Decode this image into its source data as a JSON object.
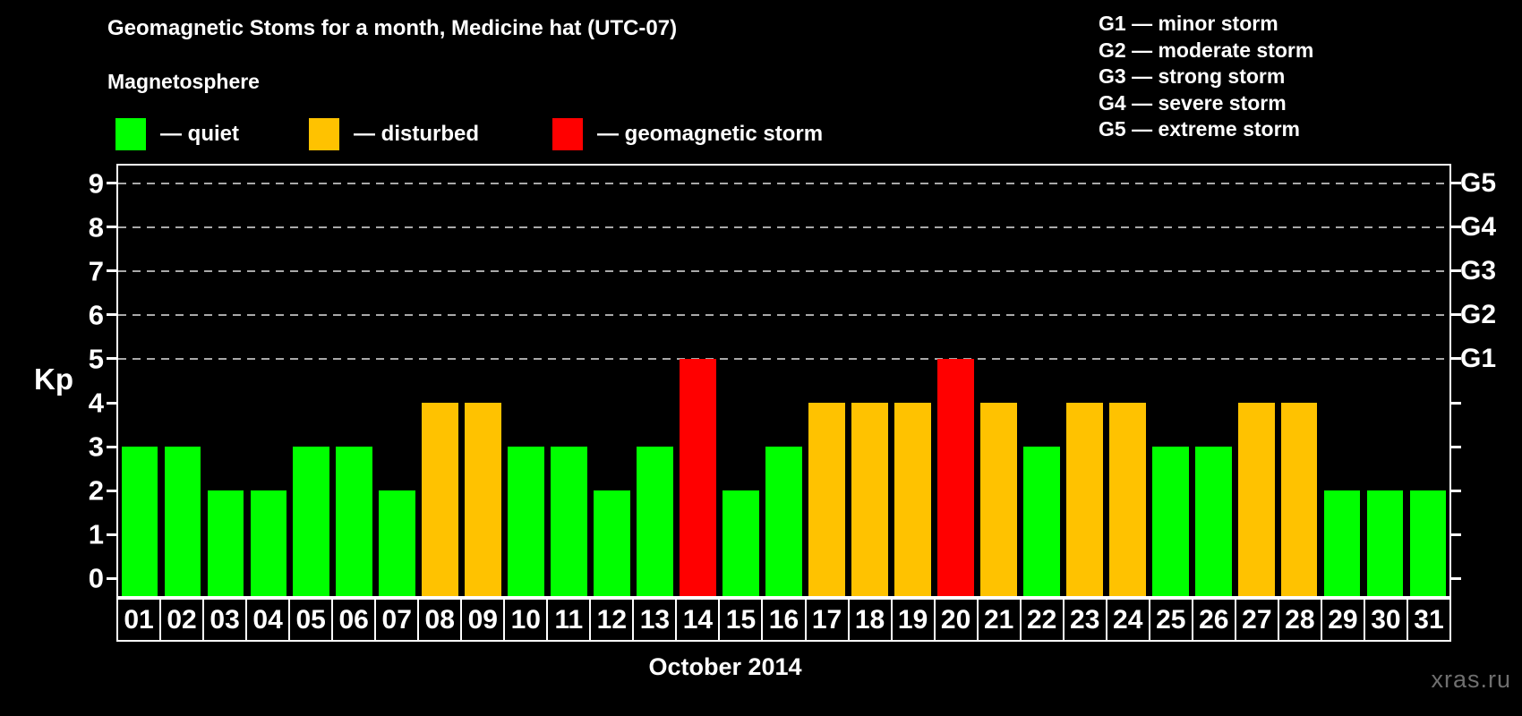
{
  "title": "Geomagnetic Stoms for a month, Medicine hat (UTC-07)",
  "subtitle": "Magnetosphere",
  "legend": {
    "items": [
      {
        "status": "quiet",
        "label": "— quiet",
        "color": "#00ff00",
        "x": 129
      },
      {
        "status": "disturbed",
        "label": "— disturbed",
        "color": "#ffc200",
        "x": 345
      },
      {
        "status": "storm",
        "label": "— geomagnetic storm",
        "color": "#ff0000",
        "x": 617
      }
    ]
  },
  "g_scale_legend": [
    "G1 — minor storm",
    "G2 — moderate storm",
    "G3 — strong storm",
    "G4 — severe storm",
    "G5 — extreme storm"
  ],
  "watermark": "xras.ru",
  "chart_data": {
    "type": "bar",
    "title": "Geomagnetic Stoms for a month, Medicine hat (UTC-07)",
    "xlabel": "October 2014",
    "ylabel": "Kp",
    "ylim": [
      -0.4,
      9.4
    ],
    "yticks": [
      0,
      1,
      2,
      3,
      4,
      5,
      6,
      7,
      8,
      9
    ],
    "gridlines_at": [
      5,
      6,
      7,
      8,
      9
    ],
    "grid": "dashed-horizontal-on-storm-levels",
    "legend_position": "top",
    "right_axis_labels": [
      {
        "value": 5,
        "label": "G1"
      },
      {
        "value": 6,
        "label": "G2"
      },
      {
        "value": 7,
        "label": "G3"
      },
      {
        "value": 8,
        "label": "G4"
      },
      {
        "value": 9,
        "label": "G5"
      }
    ],
    "categories": [
      "01",
      "02",
      "03",
      "04",
      "05",
      "06",
      "07",
      "08",
      "09",
      "10",
      "11",
      "12",
      "13",
      "14",
      "15",
      "16",
      "17",
      "18",
      "19",
      "20",
      "21",
      "22",
      "23",
      "24",
      "25",
      "26",
      "27",
      "28",
      "29",
      "30",
      "31"
    ],
    "values": [
      3,
      3,
      2,
      2,
      3,
      3,
      2,
      4,
      4,
      3,
      3,
      2,
      3,
      5,
      2,
      3,
      4,
      4,
      4,
      5,
      4,
      3,
      4,
      4,
      3,
      3,
      4,
      4,
      2,
      2,
      2
    ],
    "statuses": [
      "quiet",
      "quiet",
      "quiet",
      "quiet",
      "quiet",
      "quiet",
      "quiet",
      "disturbed",
      "disturbed",
      "quiet",
      "quiet",
      "quiet",
      "quiet",
      "storm",
      "quiet",
      "quiet",
      "disturbed",
      "disturbed",
      "disturbed",
      "storm",
      "disturbed",
      "quiet",
      "disturbed",
      "disturbed",
      "quiet",
      "quiet",
      "disturbed",
      "disturbed",
      "quiet",
      "quiet",
      "quiet"
    ],
    "status_colors": {
      "quiet": "#00ff00",
      "disturbed": "#ffc200",
      "storm": "#ff0000"
    }
  }
}
